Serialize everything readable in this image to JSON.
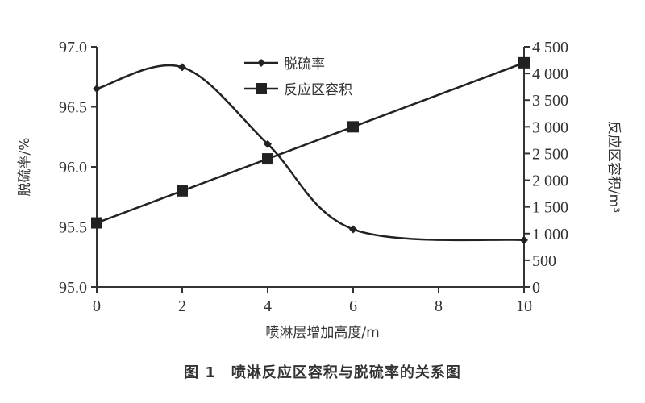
{
  "caption": "图 1　喷淋反应区容积与脱硫率的关系图",
  "chart_data": {
    "type": "line",
    "xlabel": "喷淋层增加高度/m",
    "ylabel_left": "脱硫率/%",
    "ylabel_right": "反应区容积/m³",
    "x": [
      0,
      2,
      4,
      6,
      10
    ],
    "x_ticks": [
      "0",
      "2",
      "4",
      "6",
      "8",
      "10"
    ],
    "xlim": [
      0,
      10
    ],
    "ylim_left": [
      95.0,
      97.0
    ],
    "ylim_right": [
      0,
      4500
    ],
    "left_ticks": [
      "97.0",
      "96.5",
      "96.0",
      "95.5",
      "95.0"
    ],
    "right_ticks": [
      "4 500",
      "4 000",
      "3 500",
      "3 000",
      "2 500",
      "2 000",
      "1 500",
      "1 000",
      "500",
      "0"
    ],
    "grid": false,
    "legend_position": "top-center",
    "series": [
      {
        "name": "脱硫率",
        "axis": "left",
        "marker": "diamond",
        "smooth": true,
        "color": "#222222",
        "values": [
          96.65,
          96.83,
          96.19,
          95.48,
          95.39
        ]
      },
      {
        "name": "反应区容积",
        "axis": "right",
        "marker": "square",
        "smooth": false,
        "color": "#222222",
        "values": [
          1200,
          1800,
          2400,
          3000,
          4200
        ]
      }
    ]
  }
}
